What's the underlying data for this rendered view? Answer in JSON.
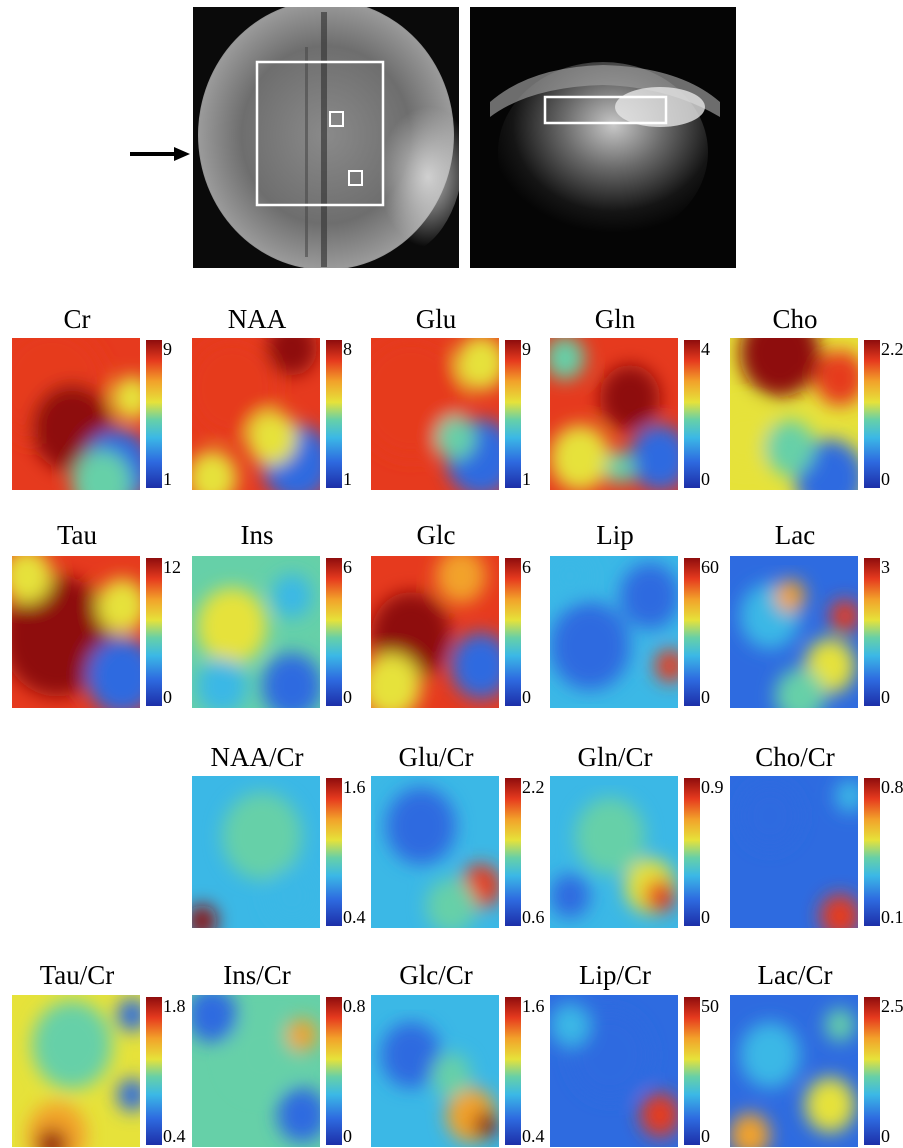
{
  "panels": [
    {
      "label": "Cr",
      "max": "9",
      "min": "1"
    },
    {
      "label": "NAA",
      "max": "8",
      "min": "1"
    },
    {
      "label": "Glu",
      "max": "9",
      "min": "1"
    },
    {
      "label": "Gln",
      "max": "4",
      "min": "0"
    },
    {
      "label": "Cho",
      "max": "2.2",
      "min": "0"
    },
    {
      "label": "Tau",
      "max": "12",
      "min": "0"
    },
    {
      "label": "Ins",
      "max": "6",
      "min": "0"
    },
    {
      "label": "Glc",
      "max": "6",
      "min": "0"
    },
    {
      "label": "Lip",
      "max": "60",
      "min": "0"
    },
    {
      "label": "Lac",
      "max": "3",
      "min": "0"
    },
    {
      "label": "NAA/Cr",
      "max": "1.6",
      "min": "0.4"
    },
    {
      "label": "Glu/Cr",
      "max": "2.2",
      "min": "0.6"
    },
    {
      "label": "Gln/Cr",
      "max": "0.9",
      "min": "0"
    },
    {
      "label": "Cho/Cr",
      "max": "0.8",
      "min": "0.1"
    },
    {
      "label": "Tau/Cr",
      "max": "1.8",
      "min": "0.4"
    },
    {
      "label": "Ins/Cr",
      "max": "0.8",
      "min": "0"
    },
    {
      "label": "Glc/Cr",
      "max": "1.6",
      "min": "0.4"
    },
    {
      "label": "Lip/Cr",
      "max": "50",
      "min": "0"
    },
    {
      "label": "Lac/Cr",
      "max": "2.5",
      "min": "0"
    }
  ]
}
